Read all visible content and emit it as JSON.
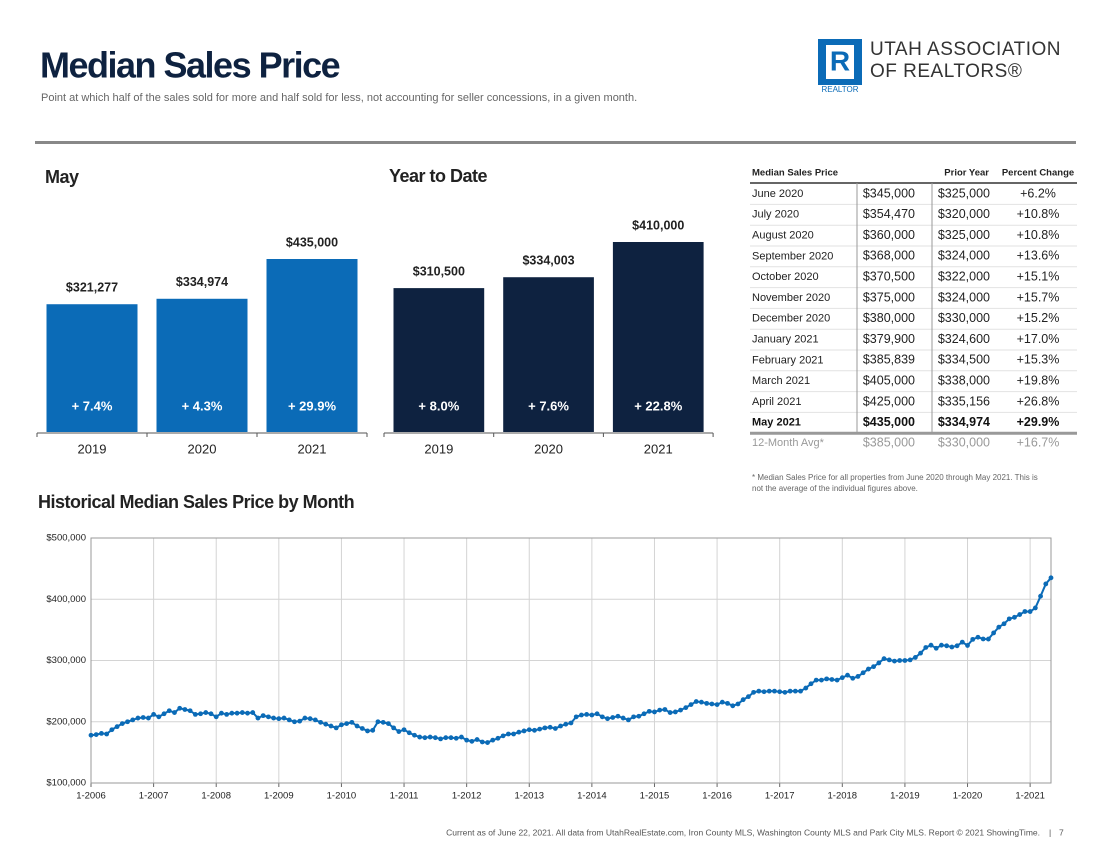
{
  "header": {
    "title": "Median Sales Price",
    "subtitle": "Point at which half of the sales sold for more and half sold for less, not accounting for seller concessions, in a given month.",
    "logo_line1": "UTAH ASSOCIATION",
    "logo_line2": "OF REALTORS®",
    "logo_mark": "REALTOR"
  },
  "chart_data": [
    {
      "type": "bar",
      "title": "May",
      "categories": [
        "2019",
        "2020",
        "2021"
      ],
      "values": [
        321277,
        334974,
        435000
      ],
      "value_labels": [
        "$321,277",
        "$334,974",
        "$435,000"
      ],
      "bar_labels": [
        "+ 7.4%",
        "+ 4.3%",
        "+ 29.9%"
      ],
      "color": "#0b6bb7"
    },
    {
      "type": "bar",
      "title": "Year to Date",
      "categories": [
        "2019",
        "2020",
        "2021"
      ],
      "values": [
        310500,
        334003,
        410000
      ],
      "value_labels": [
        "$310,500",
        "$334,003",
        "$410,000"
      ],
      "bar_labels": [
        "+ 8.0%",
        "+ 7.6%",
        "+ 22.8%"
      ],
      "color": "#0e2240"
    },
    {
      "type": "line",
      "title": "Historical Median Sales Price by Month",
      "color": "#0b6bb7",
      "grid": true,
      "x": [
        "2006-01",
        "2006-02",
        "2006-03",
        "2006-04",
        "2006-05",
        "2006-06",
        "2006-07",
        "2006-08",
        "2006-09",
        "2006-10",
        "2006-11",
        "2006-12",
        "2007-01",
        "2007-02",
        "2007-03",
        "2007-04",
        "2007-05",
        "2007-06",
        "2007-07",
        "2007-08",
        "2007-09",
        "2007-10",
        "2007-11",
        "2007-12",
        "2008-01",
        "2008-02",
        "2008-03",
        "2008-04",
        "2008-05",
        "2008-06",
        "2008-07",
        "2008-08",
        "2008-09",
        "2008-10",
        "2008-11",
        "2008-12",
        "2009-01",
        "2009-02",
        "2009-03",
        "2009-04",
        "2009-05",
        "2009-06",
        "2009-07",
        "2009-08",
        "2009-09",
        "2009-10",
        "2009-11",
        "2009-12",
        "2010-01",
        "2010-02",
        "2010-03",
        "2010-04",
        "2010-05",
        "2010-06",
        "2010-07",
        "2010-08",
        "2010-09",
        "2010-10",
        "2010-11",
        "2010-12",
        "2011-01",
        "2011-02",
        "2011-03",
        "2011-04",
        "2011-05",
        "2011-06",
        "2011-07",
        "2011-08",
        "2011-09",
        "2011-10",
        "2011-11",
        "2011-12",
        "2012-01",
        "2012-02",
        "2012-03",
        "2012-04",
        "2012-05",
        "2012-06",
        "2012-07",
        "2012-08",
        "2012-09",
        "2012-10",
        "2012-11",
        "2012-12",
        "2013-01",
        "2013-02",
        "2013-03",
        "2013-04",
        "2013-05",
        "2013-06",
        "2013-07",
        "2013-08",
        "2013-09",
        "2013-10",
        "2013-11",
        "2013-12",
        "2014-01",
        "2014-02",
        "2014-03",
        "2014-04",
        "2014-05",
        "2014-06",
        "2014-07",
        "2014-08",
        "2014-09",
        "2014-10",
        "2014-11",
        "2014-12",
        "2015-01",
        "2015-02",
        "2015-03",
        "2015-04",
        "2015-05",
        "2015-06",
        "2015-07",
        "2015-08",
        "2015-09",
        "2015-10",
        "2015-11",
        "2015-12",
        "2016-01",
        "2016-02",
        "2016-03",
        "2016-04",
        "2016-05",
        "2016-06",
        "2016-07",
        "2016-08",
        "2016-09",
        "2016-10",
        "2016-11",
        "2016-12",
        "2017-01",
        "2017-02",
        "2017-03",
        "2017-04",
        "2017-05",
        "2017-06",
        "2017-07",
        "2017-08",
        "2017-09",
        "2017-10",
        "2017-11",
        "2017-12",
        "2018-01",
        "2018-02",
        "2018-03",
        "2018-04",
        "2018-05",
        "2018-06",
        "2018-07",
        "2018-08",
        "2018-09",
        "2018-10",
        "2018-11",
        "2018-12",
        "2019-01",
        "2019-02",
        "2019-03",
        "2019-04",
        "2019-05",
        "2019-06",
        "2019-07",
        "2019-08",
        "2019-09",
        "2019-10",
        "2019-11",
        "2019-12",
        "2020-01",
        "2020-02",
        "2020-03",
        "2020-04",
        "2020-05",
        "2020-06",
        "2020-07",
        "2020-08",
        "2020-09",
        "2020-10",
        "2020-11",
        "2020-12",
        "2021-01",
        "2021-02",
        "2021-03",
        "2021-04",
        "2021-05"
      ],
      "values": [
        178000,
        179000,
        181000,
        180000,
        187000,
        192000,
        197000,
        200000,
        203000,
        206000,
        207000,
        206000,
        212000,
        208000,
        213000,
        218000,
        215000,
        222000,
        220000,
        218000,
        212000,
        213000,
        215000,
        213000,
        208000,
        214000,
        212000,
        214000,
        214000,
        215000,
        214000,
        215000,
        206000,
        210000,
        208000,
        206000,
        205000,
        206000,
        203000,
        200000,
        201000,
        206000,
        205000,
        203000,
        199000,
        196000,
        193000,
        190000,
        195000,
        197000,
        199000,
        193000,
        189000,
        185000,
        186000,
        200000,
        199000,
        197000,
        190000,
        184000,
        187000,
        182000,
        178000,
        175000,
        174000,
        175000,
        174000,
        172000,
        174000,
        174000,
        173000,
        175000,
        170000,
        168000,
        171000,
        167000,
        166000,
        170000,
        173000,
        177000,
        180000,
        180000,
        183000,
        185000,
        187000,
        186000,
        188000,
        190000,
        191000,
        189000,
        193000,
        196000,
        198000,
        208000,
        211000,
        212000,
        211000,
        213000,
        208000,
        205000,
        207000,
        209000,
        206000,
        203000,
        208000,
        209000,
        213000,
        217000,
        216000,
        219000,
        220000,
        215000,
        216000,
        219000,
        223000,
        228000,
        233000,
        232000,
        230000,
        229000,
        228000,
        232000,
        230000,
        226000,
        229000,
        236000,
        241000,
        248000,
        250000,
        249000,
        250000,
        250000,
        249000,
        248000,
        250000,
        250000,
        250000,
        255000,
        262000,
        268000,
        268000,
        270000,
        269000,
        268000,
        272000,
        276000,
        271000,
        274000,
        280000,
        286000,
        290000,
        296000,
        303000,
        301000,
        299000,
        300000,
        300000,
        301000,
        305000,
        312000,
        321277,
        325000,
        320000,
        325000,
        324000,
        322000,
        324000,
        330000,
        324600,
        334500,
        338000,
        335156,
        334974,
        345000,
        354470,
        360000,
        368000,
        370500,
        375000,
        380000,
        379900,
        385839,
        405000,
        425000,
        435000
      ],
      "ylim": [
        100000,
        500000
      ],
      "yticks": [
        {
          "value": 100000,
          "label": "$100,000"
        },
        {
          "value": 200000,
          "label": "$200,000"
        },
        {
          "value": 300000,
          "label": "$300,000"
        },
        {
          "value": 400000,
          "label": "$400,000"
        },
        {
          "value": 500000,
          "label": "$500,000"
        }
      ],
      "xticks": [
        {
          "value": "2006-01",
          "label": "1-2006"
        },
        {
          "value": "2007-01",
          "label": "1-2007"
        },
        {
          "value": "2008-01",
          "label": "1-2008"
        },
        {
          "value": "2009-01",
          "label": "1-2009"
        },
        {
          "value": "2010-01",
          "label": "1-2010"
        },
        {
          "value": "2011-01",
          "label": "1-2011"
        },
        {
          "value": "2012-01",
          "label": "1-2012"
        },
        {
          "value": "2013-01",
          "label": "1-2013"
        },
        {
          "value": "2014-01",
          "label": "1-2014"
        },
        {
          "value": "2015-01",
          "label": "1-2015"
        },
        {
          "value": "2016-01",
          "label": "1-2016"
        },
        {
          "value": "2017-01",
          "label": "1-2017"
        },
        {
          "value": "2018-01",
          "label": "1-2018"
        },
        {
          "value": "2019-01",
          "label": "1-2019"
        },
        {
          "value": "2020-01",
          "label": "1-2020"
        },
        {
          "value": "2021-01",
          "label": "1-2021"
        }
      ]
    }
  ],
  "table": {
    "columns": [
      "Median Sales Price",
      "Prior Year",
      "Percent Change"
    ],
    "rows": [
      [
        "June 2020",
        "$345,000",
        "$325,000",
        "+6.2%"
      ],
      [
        "July 2020",
        "$354,470",
        "$320,000",
        "+10.8%"
      ],
      [
        "August 2020",
        "$360,000",
        "$325,000",
        "+10.8%"
      ],
      [
        "September 2020",
        "$368,000",
        "$324,000",
        "+13.6%"
      ],
      [
        "October 2020",
        "$370,500",
        "$322,000",
        "+15.1%"
      ],
      [
        "November 2020",
        "$375,000",
        "$324,000",
        "+15.7%"
      ],
      [
        "December 2020",
        "$380,000",
        "$330,000",
        "+15.2%"
      ],
      [
        "January 2021",
        "$379,900",
        "$324,600",
        "+17.0%"
      ],
      [
        "February 2021",
        "$385,839",
        "$334,500",
        "+15.3%"
      ],
      [
        "March 2021",
        "$405,000",
        "$338,000",
        "+19.8%"
      ],
      [
        "April 2021",
        "$425,000",
        "$335,156",
        "+26.8%"
      ],
      [
        "May 2021",
        "$435,000",
        "$334,974",
        "+29.9%"
      ]
    ],
    "average_row": [
      "12-Month Avg*",
      "$385,000",
      "$330,000",
      "+16.7%"
    ],
    "footnote_line1": "* Median Sales Price for all properties from June 2020 through May 2021. This is",
    "footnote_line2": "not the average of the individual figures above."
  },
  "footer": {
    "text": "Current as of June 22, 2021. All data from UtahRealEstate.com, Iron County MLS, Washington County MLS and Park City MLS. Report © 2021 ShowingTime.",
    "page": "7"
  }
}
